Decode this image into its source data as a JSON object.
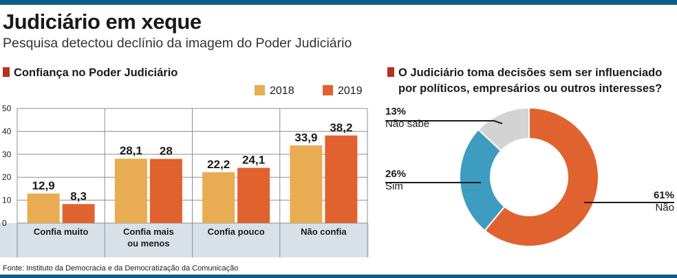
{
  "header": {
    "title": "Judiciário em xeque",
    "subtitle": "Pesquisa detectou declínio da imagem do Poder Judiciário"
  },
  "bar_section": {
    "title": "Confiança no Poder Judiciário"
  },
  "donut_section": {
    "title_line1": "O Judiciário toma decisões sem ser influenciado",
    "title_line2": "por políticos, empresários ou outros interesses?"
  },
  "source": "Fonte: Instituto da  Democracia e da Democratização da Comunicação",
  "colors": {
    "2018": "#e8ac52",
    "2019": "#e0622f",
    "nao": "#e0622f",
    "sim": "#3d9cc0",
    "nao_sabe": "#d3d3d3",
    "accent": "#b5331f",
    "bar_band": "#0d5c87"
  },
  "chart_data": [
    {
      "type": "bar",
      "title": "Confiança no Poder Judiciário",
      "categories": [
        "Confia muito",
        "Confia mais\nou menos",
        "Confia pouco",
        "Não confia"
      ],
      "series": [
        {
          "name": "2018",
          "values": [
            12.9,
            28.1,
            22.2,
            33.9
          ],
          "labels": [
            "12,9",
            "28,1",
            "22,2",
            "33,9"
          ]
        },
        {
          "name": "2019",
          "values": [
            8.3,
            28,
            24.1,
            38.2
          ],
          "labels": [
            "8,3",
            "28",
            "24,1",
            "38,2"
          ]
        }
      ],
      "yticks": [
        0,
        10,
        20,
        30,
        40,
        50
      ],
      "ylim": [
        0,
        50
      ],
      "legend": "top-right"
    },
    {
      "type": "pie",
      "title": "O Judiciário toma decisões sem ser influenciado por políticos, empresários ou outros interesses?",
      "slices": [
        {
          "label": "Não",
          "value": 61,
          "pct_label": "61%"
        },
        {
          "label": "Sim",
          "value": 26,
          "pct_label": "26%"
        },
        {
          "label": "Não sabe",
          "value": 13,
          "pct_label": "13%"
        }
      ]
    }
  ]
}
